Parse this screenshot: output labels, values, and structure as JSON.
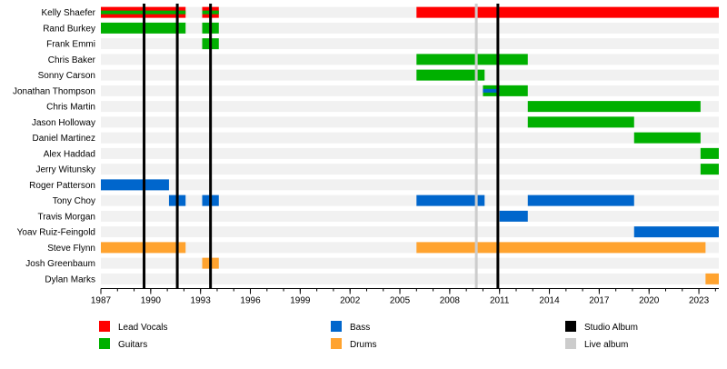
{
  "chart_data": {
    "type": "timeline",
    "xlim": [
      1987,
      2024.2
    ],
    "x_ticks": [
      1987,
      1990,
      1993,
      1996,
      1999,
      2002,
      2005,
      2008,
      2011,
      2014,
      2017,
      2020,
      2023
    ],
    "roles": {
      "vocals": {
        "label": "Lead Vocals",
        "color": "#ff0000"
      },
      "guitars": {
        "label": "Guitars",
        "color": "#00b000"
      },
      "bass": {
        "label": "Bass",
        "color": "#0066cc"
      },
      "drums": {
        "label": "Drums",
        "color": "#ffa32f"
      }
    },
    "events": {
      "studio": {
        "label": "Studio Album",
        "color": "#000000",
        "years": [
          1989.6,
          1991.6,
          1993.6,
          2010.9
        ]
      },
      "live": {
        "label": "Live album",
        "color": "#cccccc",
        "years": [
          2009.6
        ]
      }
    },
    "members": [
      {
        "name": "Kelly Shaefer",
        "spans": [
          {
            "role": "vocals",
            "from": 1987,
            "to": 1992.1,
            "secondary": "guitars"
          },
          {
            "role": "vocals",
            "from": 1993.1,
            "to": 1994.1,
            "secondary": "guitars"
          },
          {
            "role": "vocals",
            "from": 2006,
            "to": 2024.2
          }
        ]
      },
      {
        "name": "Rand Burkey",
        "spans": [
          {
            "role": "guitars",
            "from": 1987,
            "to": 1992.1
          },
          {
            "role": "guitars",
            "from": 1993.1,
            "to": 1994.1
          }
        ]
      },
      {
        "name": "Frank Emmi",
        "spans": [
          {
            "role": "guitars",
            "from": 1993.1,
            "to": 1994.1
          }
        ]
      },
      {
        "name": "Chris Baker",
        "spans": [
          {
            "role": "guitars",
            "from": 2006,
            "to": 2012.7
          }
        ]
      },
      {
        "name": "Sonny Carson",
        "spans": [
          {
            "role": "guitars",
            "from": 2006,
            "to": 2010.1
          }
        ]
      },
      {
        "name": "Jonathan Thompson",
        "spans": [
          {
            "role": "guitars",
            "from": 2010,
            "to": 2012.7,
            "secondary": "bass",
            "secondary_to": 2011
          }
        ]
      },
      {
        "name": "Chris Martin",
        "spans": [
          {
            "role": "guitars",
            "from": 2012.7,
            "to": 2023.1
          }
        ]
      },
      {
        "name": "Jason Holloway",
        "spans": [
          {
            "role": "guitars",
            "from": 2012.7,
            "to": 2019.1
          }
        ]
      },
      {
        "name": "Daniel Martinez",
        "spans": [
          {
            "role": "guitars",
            "from": 2019.1,
            "to": 2023.1
          }
        ]
      },
      {
        "name": "Alex Haddad",
        "spans": [
          {
            "role": "guitars",
            "from": 2023.1,
            "to": 2024.2
          }
        ]
      },
      {
        "name": "Jerry Witunsky",
        "spans": [
          {
            "role": "guitars",
            "from": 2023.1,
            "to": 2024.2
          }
        ]
      },
      {
        "name": "Roger Patterson",
        "spans": [
          {
            "role": "bass",
            "from": 1987,
            "to": 1991.1
          }
        ]
      },
      {
        "name": "Tony Choy",
        "spans": [
          {
            "role": "bass",
            "from": 1991.1,
            "to": 1992.1
          },
          {
            "role": "bass",
            "from": 1993.1,
            "to": 1994.1
          },
          {
            "role": "bass",
            "from": 2006,
            "to": 2010.1
          },
          {
            "role": "bass",
            "from": 2012.7,
            "to": 2019.1
          }
        ]
      },
      {
        "name": "Travis Morgan",
        "spans": [
          {
            "role": "bass",
            "from": 2011,
            "to": 2012.7
          }
        ]
      },
      {
        "name": "Yoav Ruiz-Feingold",
        "spans": [
          {
            "role": "bass",
            "from": 2019.1,
            "to": 2024.2
          }
        ]
      },
      {
        "name": "Steve Flynn",
        "spans": [
          {
            "role": "drums",
            "from": 1987,
            "to": 1992.1
          },
          {
            "role": "drums",
            "from": 2006,
            "to": 2023.4
          }
        ]
      },
      {
        "name": "Josh Greenbaum",
        "spans": [
          {
            "role": "drums",
            "from": 1993.1,
            "to": 1994.1
          }
        ]
      },
      {
        "name": "Dylan Marks",
        "spans": [
          {
            "role": "drums",
            "from": 2023.4,
            "to": 2024.2
          }
        ]
      }
    ]
  }
}
